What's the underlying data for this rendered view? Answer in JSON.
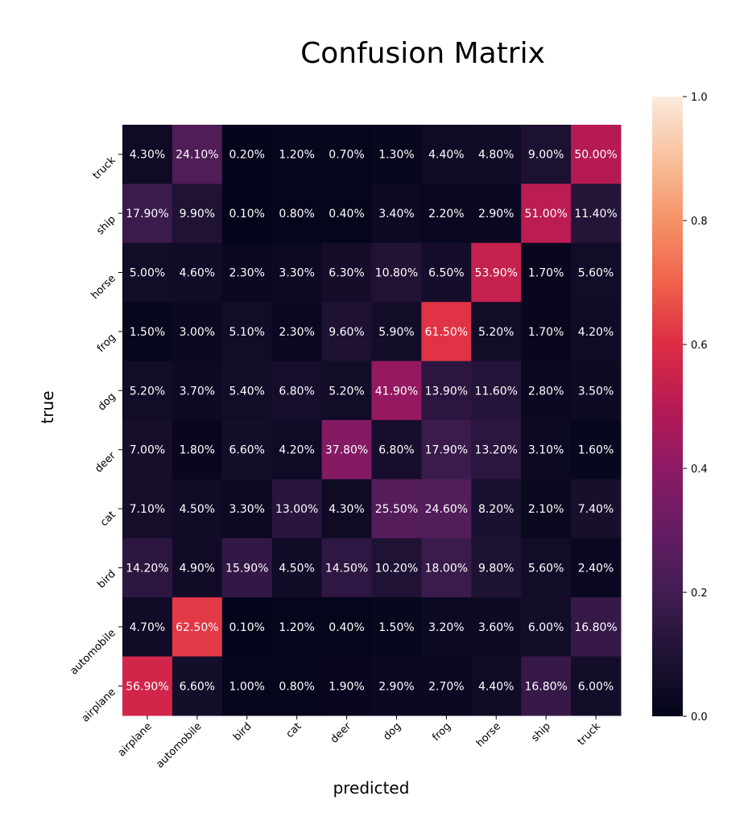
{
  "chart_data": {
    "type": "heatmap",
    "title": "Confusion Matrix",
    "xlabel": "predicted",
    "ylabel": "true",
    "x_categories": [
      "airplane",
      "automobile",
      "bird",
      "cat",
      "deer",
      "dog",
      "frog",
      "horse",
      "ship",
      "truck"
    ],
    "y_categories": [
      "truck",
      "ship",
      "horse",
      "frog",
      "dog",
      "deer",
      "cat",
      "bird",
      "automobile",
      "airplane"
    ],
    "values": [
      [
        0.043,
        0.241,
        0.002,
        0.012,
        0.007,
        0.013,
        0.044,
        0.048,
        0.09,
        0.5
      ],
      [
        0.179,
        0.099,
        0.001,
        0.008,
        0.004,
        0.034,
        0.022,
        0.029,
        0.51,
        0.114
      ],
      [
        0.05,
        0.046,
        0.023,
        0.033,
        0.063,
        0.108,
        0.065,
        0.539,
        0.017,
        0.056
      ],
      [
        0.015,
        0.03,
        0.051,
        0.023,
        0.096,
        0.059,
        0.615,
        0.052,
        0.017,
        0.042
      ],
      [
        0.052,
        0.037,
        0.054,
        0.068,
        0.052,
        0.419,
        0.139,
        0.116,
        0.028,
        0.035
      ],
      [
        0.07,
        0.018,
        0.066,
        0.042,
        0.378,
        0.068,
        0.179,
        0.132,
        0.031,
        0.016
      ],
      [
        0.071,
        0.045,
        0.033,
        0.13,
        0.043,
        0.255,
        0.246,
        0.082,
        0.021,
        0.074
      ],
      [
        0.142,
        0.049,
        0.159,
        0.045,
        0.145,
        0.102,
        0.18,
        0.098,
        0.056,
        0.024
      ],
      [
        0.047,
        0.625,
        0.001,
        0.012,
        0.004,
        0.015,
        0.032,
        0.036,
        0.06,
        0.168
      ],
      [
        0.569,
        0.066,
        0.01,
        0.008,
        0.019,
        0.029,
        0.027,
        0.044,
        0.168,
        0.06
      ]
    ],
    "cell_labels": [
      [
        "4.30%",
        "24.10%",
        "0.20%",
        "1.20%",
        "0.70%",
        "1.30%",
        "4.40%",
        "4.80%",
        "9.00%",
        "50.00%"
      ],
      [
        "17.90%",
        "9.90%",
        "0.10%",
        "0.80%",
        "0.40%",
        "3.40%",
        "2.20%",
        "2.90%",
        "51.00%",
        "11.40%"
      ],
      [
        "5.00%",
        "4.60%",
        "2.30%",
        "3.30%",
        "6.30%",
        "10.80%",
        "6.50%",
        "53.90%",
        "1.70%",
        "5.60%"
      ],
      [
        "1.50%",
        "3.00%",
        "5.10%",
        "2.30%",
        "9.60%",
        "5.90%",
        "61.50%",
        "5.20%",
        "1.70%",
        "4.20%"
      ],
      [
        "5.20%",
        "3.70%",
        "5.40%",
        "6.80%",
        "5.20%",
        "41.90%",
        "13.90%",
        "11.60%",
        "2.80%",
        "3.50%"
      ],
      [
        "7.00%",
        "1.80%",
        "6.60%",
        "4.20%",
        "37.80%",
        "6.80%",
        "17.90%",
        "13.20%",
        "3.10%",
        "1.60%"
      ],
      [
        "7.10%",
        "4.50%",
        "3.30%",
        "13.00%",
        "4.30%",
        "25.50%",
        "24.60%",
        "8.20%",
        "2.10%",
        "7.40%"
      ],
      [
        "14.20%",
        "4.90%",
        "15.90%",
        "4.50%",
        "14.50%",
        "10.20%",
        "18.00%",
        "9.80%",
        "5.60%",
        "2.40%"
      ],
      [
        "4.70%",
        "62.50%",
        "0.10%",
        "1.20%",
        "0.40%",
        "1.50%",
        "3.20%",
        "3.60%",
        "6.00%",
        "16.80%"
      ],
      [
        "56.90%",
        "6.60%",
        "1.00%",
        "0.80%",
        "1.90%",
        "2.90%",
        "2.70%",
        "4.40%",
        "16.80%",
        "6.00%"
      ]
    ],
    "colorbar": {
      "range": [
        0,
        1
      ],
      "ticks": [
        0.0,
        0.2,
        0.4,
        0.6,
        0.8,
        1.0
      ],
      "tick_labels": [
        "0.0",
        "0.2",
        "0.4",
        "0.6",
        "0.8",
        "1.0"
      ],
      "colormap": "rocket"
    }
  }
}
